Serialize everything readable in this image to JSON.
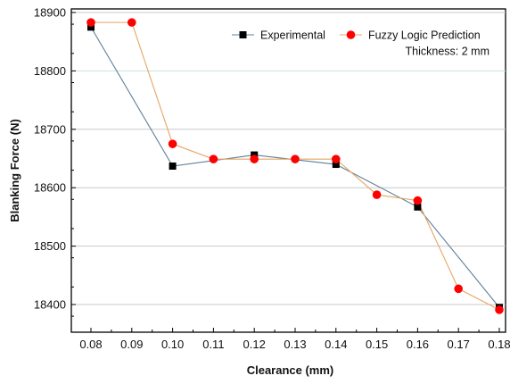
{
  "chart_data": {
    "type": "line",
    "title": "",
    "xlabel": "Clearance (mm)",
    "ylabel": "Blanking Force (N)",
    "xlim": [
      0.08,
      0.18
    ],
    "ylim": [
      18380,
      18900
    ],
    "x_ticks": [
      "0.08",
      "0.09",
      "0.10",
      "0.11",
      "0.12",
      "0.13",
      "0.14",
      "0.15",
      "0.16",
      "0.17",
      "0.18"
    ],
    "y_ticks": [
      "18400",
      "18500",
      "18600",
      "18700",
      "18800",
      "18900"
    ],
    "grid": "horizontal",
    "legend_position": "top-right",
    "annotation": "Thickness: 2 mm",
    "series": [
      {
        "name": "Experimental",
        "marker": "square",
        "marker_color": "#000000",
        "line_color": "#5f7f99",
        "x": [
          0.08,
          0.1,
          0.12,
          0.14,
          0.16,
          0.18
        ],
        "y": [
          18875,
          18637,
          18656,
          18640,
          18567,
          18395
        ]
      },
      {
        "name": "Fuzzy Logic Prediction",
        "marker": "circle",
        "marker_color": "#ff0000",
        "line_color": "#e8a360",
        "x": [
          0.08,
          0.09,
          0.1,
          0.11,
          0.12,
          0.13,
          0.14,
          0.15,
          0.16,
          0.17,
          0.18
        ],
        "y": [
          18883,
          18883,
          18675,
          18649,
          18649,
          18649,
          18649,
          18588,
          18578,
          18427,
          18391
        ]
      }
    ]
  }
}
